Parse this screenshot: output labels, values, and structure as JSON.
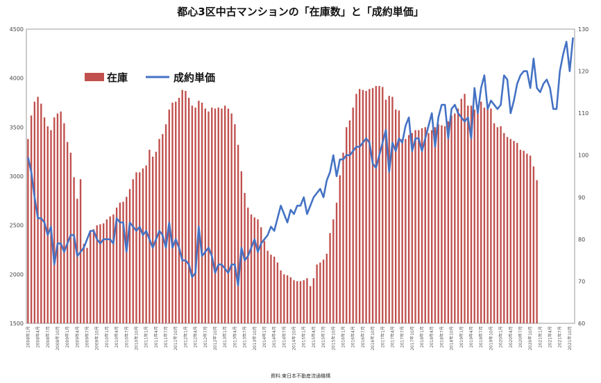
{
  "chart_data": {
    "type": "bar",
    "title": "都心3区中古マンションの「在庫数」と「成約単価」",
    "source": "資料:東日本不動産流通機構",
    "legend_placement": "top-left",
    "y_left": {
      "ylim": [
        1500,
        4500
      ],
      "ticks": [
        1500,
        2000,
        2500,
        3000,
        3500,
        4000,
        4500
      ]
    },
    "y_right": {
      "ylim": [
        60,
        130
      ],
      "ticks": [
        60,
        70,
        80,
        90,
        100,
        110,
        120,
        130
      ]
    },
    "x_start": {
      "year": 2008,
      "month": 1
    },
    "x_label_suffix_year": "年",
    "x_label_suffix_month": "月",
    "x_label_every": 3,
    "series": [
      {
        "name": "在庫",
        "type": "bar",
        "axis": "left",
        "color": "#c0504d",
        "values": [
          3380,
          3620,
          3760,
          3810,
          3740,
          3600,
          3510,
          3470,
          3600,
          3640,
          3660,
          3540,
          3350,
          3240,
          2990,
          2770,
          2970,
          2310,
          2270,
          2430,
          2460,
          2500,
          2510,
          2520,
          2560,
          2590,
          2610,
          2680,
          2730,
          2740,
          2790,
          2870,
          2970,
          3040,
          3040,
          3080,
          3110,
          3270,
          3200,
          3250,
          3380,
          3430,
          3530,
          3680,
          3750,
          3760,
          3800,
          3880,
          3870,
          3800,
          3720,
          3700,
          3770,
          3750,
          3690,
          3660,
          3700,
          3690,
          3700,
          3690,
          3720,
          3690,
          3640,
          3530,
          3320,
          3050,
          2830,
          2680,
          2610,
          2580,
          2560,
          2480,
          2340,
          2240,
          2200,
          2180,
          2120,
          2040,
          2000,
          1990,
          1970,
          1940,
          1930,
          1930,
          1940,
          1960,
          1880,
          1960,
          2100,
          2120,
          2150,
          2210,
          2420,
          2560,
          2730,
          3010,
          3240,
          3500,
          3570,
          3700,
          3840,
          3890,
          3880,
          3870,
          3890,
          3900,
          3920,
          3920,
          3910,
          3780,
          3820,
          3810,
          3680,
          3670,
          3380,
          3380,
          3420,
          3440,
          3470,
          3470,
          3490,
          3500,
          3440,
          3470,
          3500,
          3530,
          3520,
          3510,
          3560,
          3620,
          3640,
          3690,
          3790,
          3840,
          3720,
          3720,
          3680,
          3700,
          3760,
          3700,
          3690,
          3690,
          3540,
          3500,
          3510,
          3440,
          3400,
          3380,
          3360,
          3340,
          3270,
          3260,
          3230,
          3210,
          3100,
          2960
        ]
      },
      {
        "name": "成約単価",
        "type": "line",
        "axis": "right",
        "color": "#4472c4",
        "values": [
          99.5,
          96,
          90,
          85,
          85,
          84,
          81,
          83,
          74,
          79,
          79,
          77,
          79,
          81,
          81,
          76,
          77,
          78,
          80,
          82,
          82,
          80,
          79,
          80,
          80,
          80,
          79,
          85,
          84,
          84,
          77,
          84,
          83,
          82,
          83,
          81,
          82,
          80,
          78,
          80,
          82,
          81,
          78,
          84,
          78,
          80,
          78,
          75,
          75,
          74,
          71,
          72,
          83,
          76,
          77,
          78,
          76,
          72,
          74,
          74,
          73,
          72,
          74,
          74,
          69,
          78,
          75,
          76,
          78,
          80,
          77,
          79,
          80,
          81,
          83,
          82,
          85,
          88,
          86,
          84,
          87,
          86,
          88,
          88,
          90,
          86,
          88,
          90,
          91,
          92,
          90,
          94,
          96,
          100,
          95,
          99,
          99,
          100,
          100,
          101,
          102,
          102,
          103,
          104,
          103,
          98,
          97,
          100,
          103,
          106,
          96,
          103,
          101,
          104,
          103,
          107,
          109,
          101,
          104,
          104,
          101,
          104,
          107,
          110,
          102,
          109,
          112,
          112,
          104,
          111,
          112,
          110,
          109,
          108,
          109,
          104,
          116,
          110,
          116,
          119,
          111,
          113,
          112,
          111,
          112,
          119,
          118,
          110,
          113,
          117,
          119,
          120,
          120,
          116,
          123,
          116,
          115,
          117,
          118,
          116,
          111,
          111,
          120,
          124,
          127,
          120,
          128
        ]
      }
    ]
  }
}
